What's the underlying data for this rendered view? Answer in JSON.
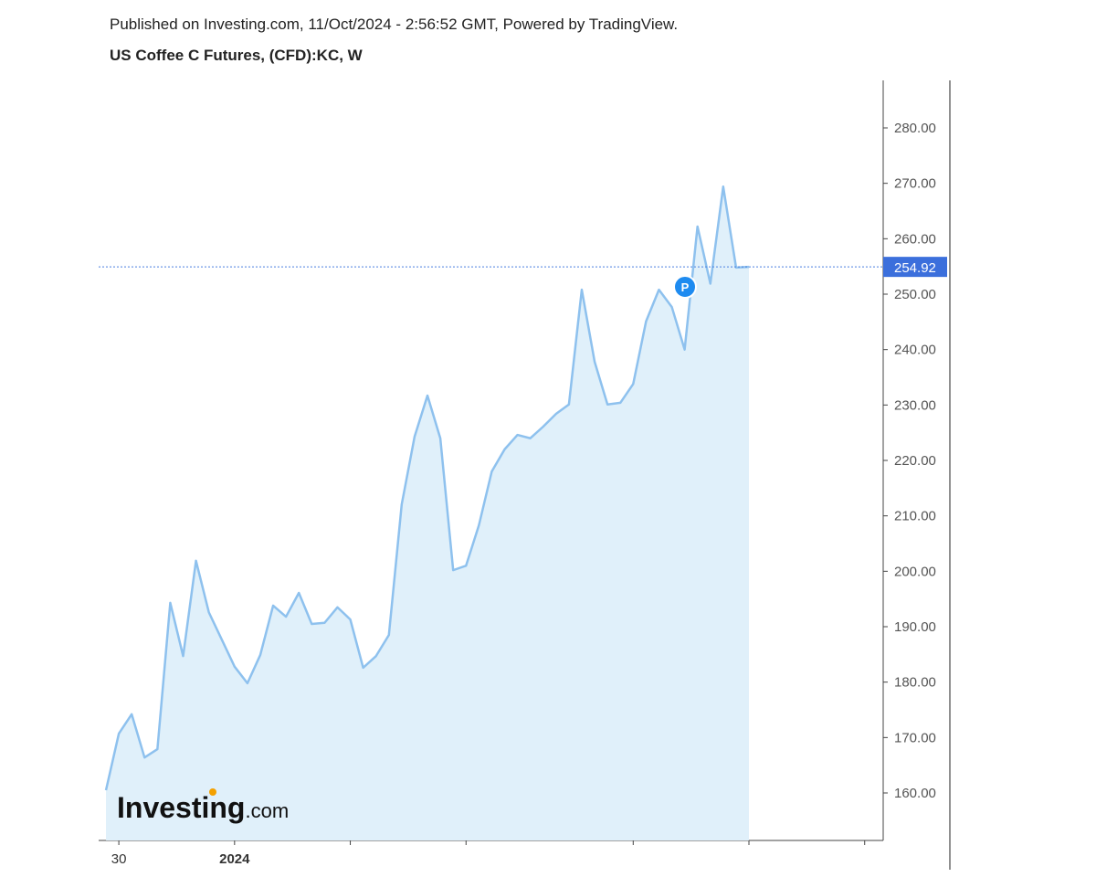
{
  "chart_data": {
    "type": "line",
    "subtitle": "Published on Investing.com, 11/Oct/2024 - 2:56:52 GMT, Powered by TradingView.",
    "title": "US Coffee C Futures, (CFD):KC, W",
    "x": [
      0,
      1,
      2,
      3,
      4,
      5,
      6,
      7,
      8,
      9,
      10,
      11,
      12,
      13,
      14,
      15,
      16,
      17,
      18,
      19,
      20,
      21,
      22,
      23,
      24,
      25,
      26,
      27,
      28,
      29,
      30,
      31,
      32,
      33,
      34,
      35,
      36,
      37,
      38,
      39,
      40,
      41,
      42,
      43,
      44,
      45,
      46,
      47,
      48,
      49,
      50
    ],
    "series": [
      {
        "color": "#8ec1ee",
        "fill": "#e0f0fa",
        "values": [
          160.5,
          170.7,
          174.2,
          166.4,
          167.9,
          194.3,
          184.7,
          201.9,
          192.6,
          187.7,
          182.8,
          179.8,
          184.9,
          193.8,
          191.8,
          196.1,
          190.5,
          190.7,
          193.5,
          191.3,
          182.6,
          184.7,
          188.5,
          212.1,
          224.3,
          231.7,
          224.0,
          200.2,
          201.0,
          208.3,
          218.0,
          222.0,
          224.6,
          224.0,
          226.1,
          228.4,
          230.1,
          250.8,
          237.8,
          230.1,
          230.4,
          233.8,
          245.1,
          250.8,
          247.7,
          240.0,
          262.2,
          251.9,
          269.4,
          254.8,
          254.92
        ]
      }
    ],
    "last_price": 254.92,
    "xlim": [
      -0.57,
      60.44
    ],
    "xticks": [
      {
        "value": 1,
        "label": "30"
      },
      {
        "value": 10,
        "label": "2024"
      }
    ],
    "xminor_ticks": [
      19,
      28,
      41,
      50,
      59
    ],
    "ylim": [
      151.43,
      288.57
    ],
    "yticks": [
      {
        "value": 160,
        "label": "160.00"
      },
      {
        "value": 170,
        "label": "170.00"
      },
      {
        "value": 180,
        "label": "180.00"
      },
      {
        "value": 190,
        "label": "190.00"
      },
      {
        "value": 200,
        "label": "200.00"
      },
      {
        "value": 210,
        "label": "210.00"
      },
      {
        "value": 220,
        "label": "220.00"
      },
      {
        "value": 230,
        "label": "230.00"
      },
      {
        "value": 240,
        "label": "240.00"
      },
      {
        "value": 250,
        "label": "250.00"
      },
      {
        "value": 260,
        "label": "260.00"
      },
      {
        "value": 270,
        "label": "270.00"
      },
      {
        "value": 280,
        "label": "280.00"
      }
    ],
    "logo": {
      "brand": "Investing",
      "suffix": ".com"
    }
  }
}
